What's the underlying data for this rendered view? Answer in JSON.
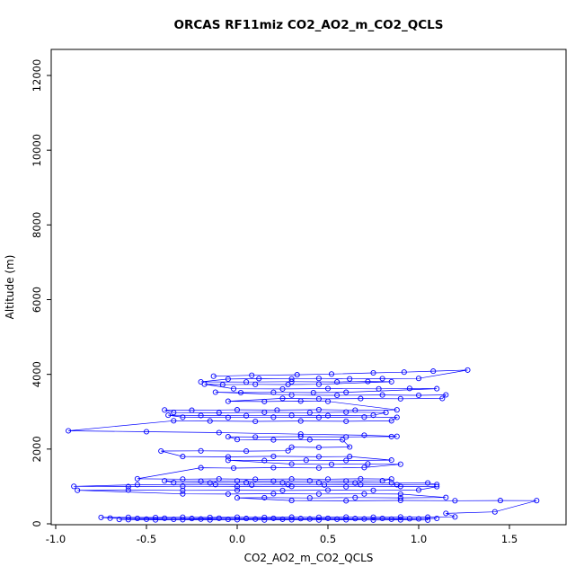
{
  "chart_data": {
    "type": "line",
    "title": "ORCAS RF11miz CO2_AO2_m_CO2_QCLS",
    "xlabel": "CO2_AO2_m_CO2_QCLS",
    "ylabel": "Altitude (m)",
    "xlim": [
      -1.05,
      1.8
    ],
    "ylim": [
      0,
      12400
    ],
    "x_ticks": [
      "-1.0",
      "-0.5",
      "0.0",
      "0.5",
      "1.0",
      "1.5"
    ],
    "x_tick_values": [
      -1.0,
      -0.5,
      0.0,
      0.5,
      1.0,
      1.5
    ],
    "y_ticks": [
      "0",
      "2000",
      "4000",
      "6000",
      "8000",
      "10000",
      "12000"
    ],
    "y_tick_values": [
      0,
      2000,
      4000,
      6000,
      8000,
      10000,
      12000
    ],
    "grid": false,
    "legend": "none",
    "marker": "open-circle",
    "line_color": "#0000FF",
    "marker_color": "#0000FF",
    "points": [
      [
        -0.13,
        3950
      ],
      [
        0.08,
        3975
      ],
      [
        0.33,
        3990
      ],
      [
        0.52,
        4010
      ],
      [
        0.75,
        4040
      ],
      [
        0.92,
        4060
      ],
      [
        1.08,
        4085
      ],
      [
        1.27,
        4115
      ],
      [
        1.0,
        3890
      ],
      [
        0.8,
        3885
      ],
      [
        0.62,
        3880
      ],
      [
        0.45,
        3892
      ],
      [
        0.3,
        3878
      ],
      [
        0.12,
        3885
      ],
      [
        -0.05,
        3875
      ],
      [
        -0.2,
        3800
      ],
      [
        0.05,
        3795
      ],
      [
        0.3,
        3805
      ],
      [
        0.55,
        3798
      ],
      [
        0.72,
        3810
      ],
      [
        0.85,
        3802
      ],
      [
        0.45,
        3735
      ],
      [
        0.28,
        3728
      ],
      [
        0.1,
        3732
      ],
      [
        -0.08,
        3725
      ],
      [
        -0.18,
        3738
      ],
      [
        -0.02,
        3615
      ],
      [
        0.25,
        3610
      ],
      [
        0.5,
        3620
      ],
      [
        0.78,
        3612
      ],
      [
        0.95,
        3625
      ],
      [
        1.1,
        3618
      ],
      [
        0.6,
        3520
      ],
      [
        0.42,
        3512
      ],
      [
        0.2,
        3518
      ],
      [
        0.02,
        3510
      ],
      [
        -0.12,
        3522
      ],
      [
        0.3,
        3445
      ],
      [
        0.55,
        3438
      ],
      [
        0.8,
        3448
      ],
      [
        1.0,
        3440
      ],
      [
        1.15,
        3450
      ],
      [
        1.13,
        3355
      ],
      [
        0.9,
        3348
      ],
      [
        0.68,
        3352
      ],
      [
        0.45,
        3345
      ],
      [
        0.25,
        3358
      ],
      [
        -0.05,
        3280
      ],
      [
        0.15,
        3272
      ],
      [
        0.35,
        3285
      ],
      [
        0.5,
        3278
      ],
      [
        0.88,
        3050
      ],
      [
        0.65,
        3042
      ],
      [
        0.45,
        3055
      ],
      [
        0.22,
        3045
      ],
      [
        0.0,
        3052
      ],
      [
        -0.25,
        3040
      ],
      [
        -0.4,
        3048
      ],
      [
        -0.35,
        2980
      ],
      [
        -0.1,
        2972
      ],
      [
        0.15,
        2985
      ],
      [
        0.4,
        2975
      ],
      [
        0.6,
        2988
      ],
      [
        0.82,
        2978
      ],
      [
        0.75,
        2905
      ],
      [
        0.5,
        2895
      ],
      [
        0.3,
        2902
      ],
      [
        0.05,
        2892
      ],
      [
        -0.2,
        2898
      ],
      [
        -0.38,
        2908
      ],
      [
        -0.3,
        2852
      ],
      [
        -0.05,
        2845
      ],
      [
        0.2,
        2855
      ],
      [
        0.45,
        2848
      ],
      [
        0.7,
        2858
      ],
      [
        0.88,
        2850
      ],
      [
        0.85,
        2755
      ],
      [
        0.6,
        2745
      ],
      [
        0.35,
        2752
      ],
      [
        0.1,
        2742
      ],
      [
        -0.15,
        2750
      ],
      [
        -0.35,
        2758
      ],
      [
        -0.93,
        2490
      ],
      [
        -0.5,
        2465
      ],
      [
        -0.1,
        2440
      ],
      [
        0.35,
        2400
      ],
      [
        0.7,
        2370
      ],
      [
        0.88,
        2340
      ],
      [
        0.85,
        2335
      ],
      [
        0.6,
        2325
      ],
      [
        0.35,
        2332
      ],
      [
        0.1,
        2322
      ],
      [
        -0.05,
        2330
      ],
      [
        0.0,
        2255
      ],
      [
        0.2,
        2245
      ],
      [
        0.4,
        2252
      ],
      [
        0.58,
        2248
      ],
      [
        0.62,
        2055
      ],
      [
        0.45,
        2045
      ],
      [
        0.3,
        2052
      ],
      [
        0.28,
        1955
      ],
      [
        0.05,
        1945
      ],
      [
        -0.2,
        1952
      ],
      [
        -0.42,
        1948
      ],
      [
        -0.3,
        1800
      ],
      [
        -0.05,
        1792
      ],
      [
        0.2,
        1805
      ],
      [
        0.45,
        1795
      ],
      [
        0.62,
        1802
      ],
      [
        0.85,
        1705
      ],
      [
        0.6,
        1695
      ],
      [
        0.38,
        1702
      ],
      [
        0.15,
        1692
      ],
      [
        -0.05,
        1700
      ],
      [
        0.3,
        1600
      ],
      [
        0.52,
        1592
      ],
      [
        0.72,
        1605
      ],
      [
        0.9,
        1595
      ],
      [
        0.7,
        1505
      ],
      [
        0.45,
        1495
      ],
      [
        0.2,
        1502
      ],
      [
        -0.02,
        1492
      ],
      [
        -0.2,
        1500
      ],
      [
        -0.55,
        1205
      ],
      [
        -0.3,
        1195
      ],
      [
        -0.1,
        1202
      ],
      [
        0.1,
        1192
      ],
      [
        0.3,
        1200
      ],
      [
        0.5,
        1194
      ],
      [
        0.68,
        1205
      ],
      [
        0.85,
        1198
      ],
      [
        0.8,
        1152
      ],
      [
        0.6,
        1145
      ],
      [
        0.4,
        1150
      ],
      [
        0.2,
        1142
      ],
      [
        0.0,
        1148
      ],
      [
        -0.2,
        1140
      ],
      [
        -0.4,
        1150
      ],
      [
        -0.35,
        1102
      ],
      [
        -0.15,
        1095
      ],
      [
        0.05,
        1105
      ],
      [
        0.25,
        1098
      ],
      [
        0.45,
        1102
      ],
      [
        0.65,
        1092
      ],
      [
        0.85,
        1100
      ],
      [
        1.05,
        1095
      ],
      [
        1.1,
        1052
      ],
      [
        0.88,
        1045
      ],
      [
        0.68,
        1050
      ],
      [
        0.48,
        1042
      ],
      [
        0.28,
        1048
      ],
      [
        0.08,
        1040
      ],
      [
        -0.12,
        1050
      ],
      [
        -0.55,
        1045
      ],
      [
        -0.9,
        1002
      ],
      [
        -0.6,
        995
      ],
      [
        -0.3,
        1005
      ],
      [
        0.0,
        998
      ],
      [
        0.3,
        1002
      ],
      [
        0.6,
        992
      ],
      [
        0.9,
        1000
      ],
      [
        1.1,
        995
      ],
      [
        1.0,
        905
      ],
      [
        0.75,
        895
      ],
      [
        0.5,
        902
      ],
      [
        0.25,
        892
      ],
      [
        0.0,
        900
      ],
      [
        -0.3,
        895
      ],
      [
        -0.6,
        905
      ],
      [
        -0.88,
        898
      ],
      [
        -0.3,
        802
      ],
      [
        -0.05,
        795
      ],
      [
        0.2,
        805
      ],
      [
        0.45,
        798
      ],
      [
        0.7,
        802
      ],
      [
        0.9,
        795
      ],
      [
        1.15,
        705
      ],
      [
        0.9,
        695
      ],
      [
        0.65,
        702
      ],
      [
        0.4,
        692
      ],
      [
        0.15,
        700
      ],
      [
        0.0,
        695
      ],
      [
        0.3,
        622
      ],
      [
        0.6,
        615
      ],
      [
        0.9,
        625
      ],
      [
        1.2,
        618
      ],
      [
        1.45,
        622
      ],
      [
        1.65,
        620
      ],
      [
        1.42,
        320
      ],
      [
        1.15,
        280
      ],
      [
        1.2,
        185
      ],
      [
        1.05,
        178
      ],
      [
        0.9,
        182
      ],
      [
        0.75,
        175
      ],
      [
        0.6,
        180
      ],
      [
        0.45,
        172
      ],
      [
        0.3,
        178
      ],
      [
        0.15,
        170
      ],
      [
        0.0,
        176
      ],
      [
        -0.15,
        170
      ],
      [
        -0.3,
        175
      ],
      [
        -0.45,
        168
      ],
      [
        -0.6,
        174
      ],
      [
        -0.75,
        170
      ],
      [
        -0.7,
        152
      ],
      [
        -0.55,
        145
      ],
      [
        -0.4,
        150
      ],
      [
        -0.25,
        143
      ],
      [
        -0.1,
        148
      ],
      [
        0.05,
        142
      ],
      [
        0.2,
        147
      ],
      [
        0.35,
        140
      ],
      [
        0.5,
        146
      ],
      [
        0.65,
        139
      ],
      [
        0.8,
        145
      ],
      [
        0.95,
        138
      ],
      [
        1.1,
        144
      ],
      [
        1.0,
        132
      ],
      [
        0.85,
        126
      ],
      [
        0.7,
        130
      ],
      [
        0.55,
        124
      ],
      [
        0.4,
        129
      ],
      [
        0.25,
        122
      ],
      [
        0.1,
        128
      ],
      [
        -0.05,
        121
      ],
      [
        -0.2,
        127
      ],
      [
        -0.35,
        120
      ],
      [
        -0.5,
        126
      ],
      [
        -0.65,
        119
      ],
      [
        -0.6,
        112
      ],
      [
        -0.45,
        106
      ],
      [
        -0.3,
        111
      ],
      [
        -0.15,
        105
      ],
      [
        0.0,
        110
      ],
      [
        0.15,
        104
      ],
      [
        0.3,
        109
      ],
      [
        0.45,
        103
      ],
      [
        0.6,
        108
      ],
      [
        0.75,
        102
      ],
      [
        0.9,
        107
      ],
      [
        1.05,
        101
      ]
    ]
  }
}
